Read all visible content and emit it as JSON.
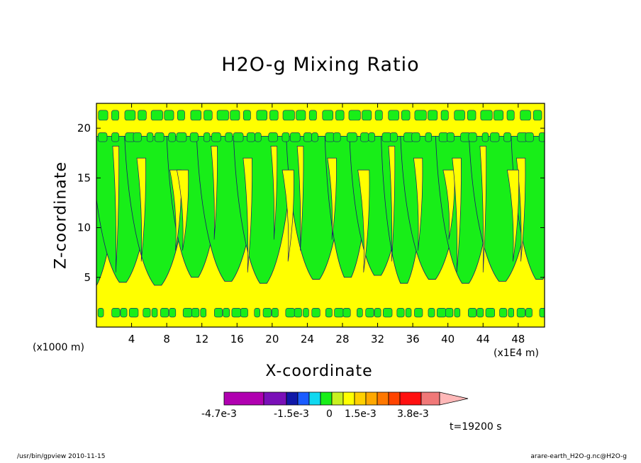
{
  "chart_data": {
    "type": "contour",
    "title": "H2O-g Mixing Ratio",
    "xlabel": "X-coordinate",
    "ylabel": "Z-coordinate",
    "x_ticks": [
      "4",
      "8",
      "12",
      "16",
      "20",
      "24",
      "28",
      "32",
      "36",
      "40",
      "44",
      "48"
    ],
    "y_ticks": [
      "5",
      "10",
      "15",
      "20"
    ],
    "xlim": [
      0,
      51
    ],
    "ylim": [
      0,
      22.5
    ],
    "x_unit_left": "(x1000 m)",
    "x_unit_right": "(x1E4 m)",
    "time": "t=19200 s",
    "colorbar": {
      "labels": [
        "-4.7e-3",
        "-1.5e-3",
        "0",
        "1.5e-3",
        "3.8e-3"
      ],
      "colors": [
        "#b000b0",
        "#7a10b8",
        "#1018a8",
        "#1a5cff",
        "#10d8f0",
        "#18ee18",
        "#c8f020",
        "#ffff00",
        "#ffd000",
        "#ffa800",
        "#ff7800",
        "#ff4400",
        "#ff1010",
        "#f07878",
        "#ffb8b8"
      ]
    },
    "colors": {
      "background_field": "#ffff00",
      "positive_band": "#18ee18",
      "contour_line": "#1a1a6e"
    }
  },
  "footer": {
    "left": "/usr/bin/gpview   2010-11-15",
    "right": "arare-earth_H2O-g.nc@H2O-g"
  }
}
